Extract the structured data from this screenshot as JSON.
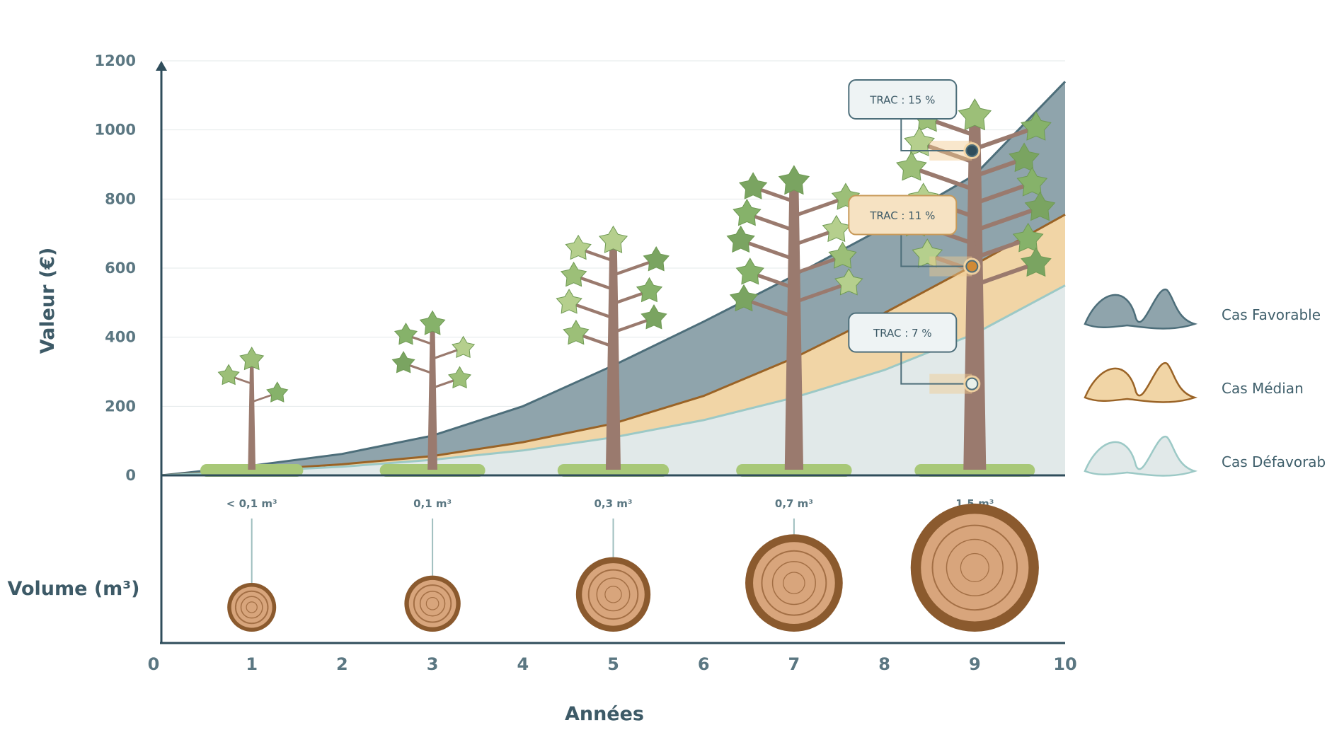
{
  "chart_data": {
    "type": "area",
    "xlabel": "Années",
    "ylabel": "Valeur (€)",
    "secondary_label": "Volume (m³)",
    "x_ticks": [
      "0",
      "1",
      "2",
      "3",
      "4",
      "5",
      "6",
      "7",
      "8",
      "9",
      "10"
    ],
    "y_ticks": [
      "0",
      "200",
      "400",
      "600",
      "800",
      "1000",
      "1200"
    ],
    "xlim": [
      0,
      10
    ],
    "ylim": [
      0,
      1200
    ],
    "grid": "horizontal",
    "legend_position": "right",
    "x": [
      0,
      1,
      2,
      3,
      4,
      5,
      6,
      7,
      8,
      9,
      10
    ],
    "series": [
      {
        "name": "Cas Favorable",
        "color": "#8fa4ac",
        "line_color": "#4d6e7a",
        "values": [
          0,
          28,
          62,
          115,
          200,
          318,
          445,
          578,
          718,
          870,
          1140
        ]
      },
      {
        "name": "Cas Médian",
        "color": "#f1d5a6",
        "line_color": "#9a6326",
        "values": [
          0,
          15,
          32,
          56,
          96,
          150,
          230,
          340,
          470,
          610,
          755
        ]
      },
      {
        "name": "Cas Défavorable",
        "color": "#e1e9e9",
        "line_color": "#9cc9c6",
        "values": [
          0,
          12,
          25,
          45,
          72,
          110,
          160,
          225,
          305,
          410,
          550
        ]
      }
    ],
    "trac_annotations": [
      {
        "label": "TRAC : 15 %",
        "x": 9,
        "y": 940,
        "series": "Cas Favorable"
      },
      {
        "label": "TRAC : 11 %",
        "x": 9,
        "y": 605,
        "series": "Cas Médian"
      },
      {
        "label": "TRAC : 7 %",
        "x": 9,
        "y": 265,
        "series": "Cas Défavorable"
      }
    ],
    "volumes": [
      {
        "year": 1,
        "label": "< 0,1 m³",
        "value": 0.05
      },
      {
        "year": 3,
        "label": "0,1 m³",
        "value": 0.1
      },
      {
        "year": 5,
        "label": "0,3 m³",
        "value": 0.3
      },
      {
        "year": 7,
        "label": "0,7 m³",
        "value": 0.7
      },
      {
        "year": 9,
        "label": "1,5 m³",
        "value": 1.5
      }
    ],
    "trees": [
      1,
      3,
      5,
      7,
      9
    ]
  }
}
